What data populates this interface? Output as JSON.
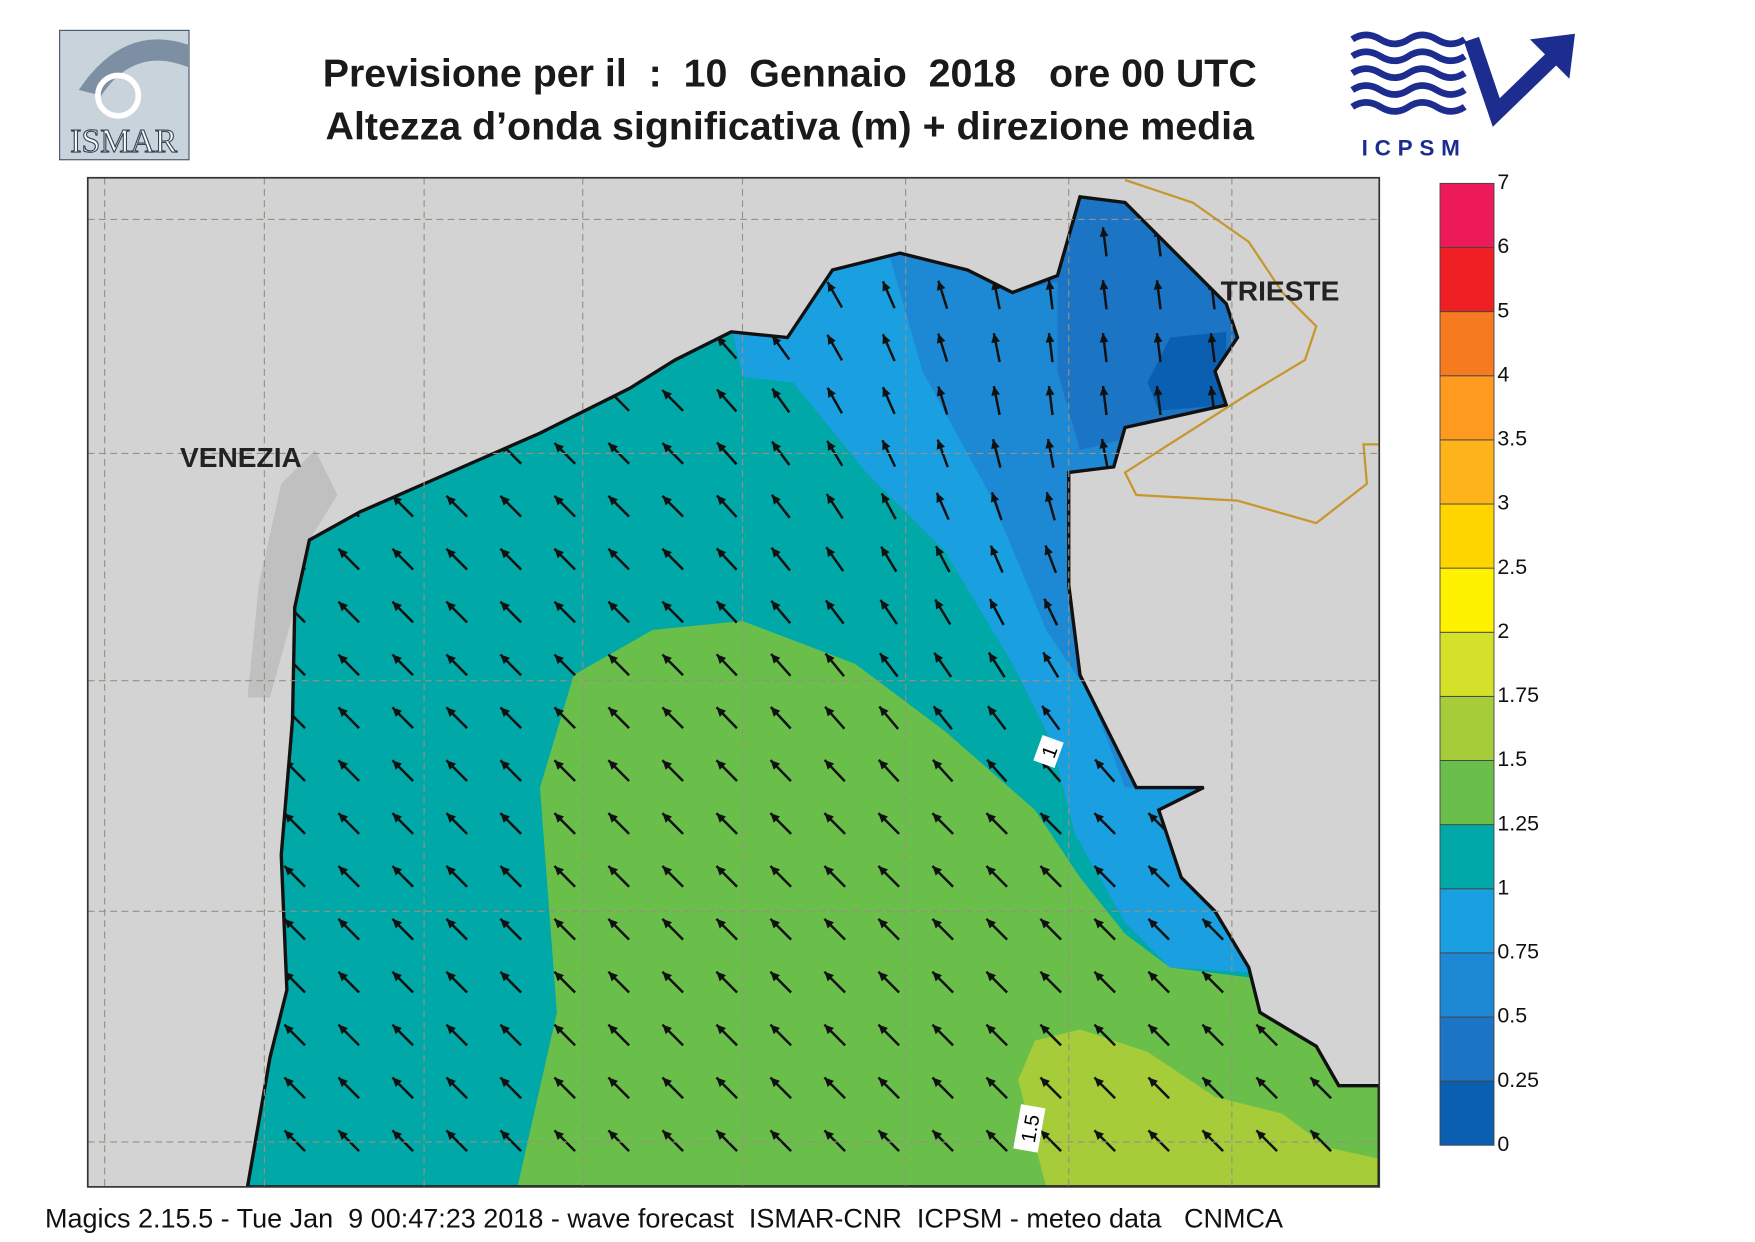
{
  "header": {
    "title": "Previsione per il  :  10  Gennaio  2018   ore 00 UTC",
    "subtitle": "Altezza d’onda significativa (m) + direzione media"
  },
  "logos": {
    "left": "ISMAR",
    "right": "ICPSM"
  },
  "map": {
    "places": [
      "VENEZIA",
      "TRIESTE"
    ],
    "contour_labels": [
      1,
      1.5
    ]
  },
  "legend": {
    "ticks": [
      0,
      0.25,
      0.5,
      0.75,
      1,
      1.25,
      1.5,
      1.75,
      2,
      2.5,
      3,
      3.5,
      4,
      5,
      6,
      7
    ],
    "colors": [
      "#0b5fb0",
      "#1c74c4",
      "#1d88d4",
      "#1aa0e0",
      "#00a8a8",
      "#6abf4b",
      "#a6cc3a",
      "#d5e02a",
      "#fff200",
      "#ffd500",
      "#ffb31a",
      "#ff9a20",
      "#f57a20",
      "#ee2024",
      "#ed1a5a"
    ]
  },
  "footer": "Magics 2.15.5 - Tue Jan  9 00:47:23 2018 - wave forecast  ISMAR-CNR  ICPSM - meteo data   CNMCA"
}
